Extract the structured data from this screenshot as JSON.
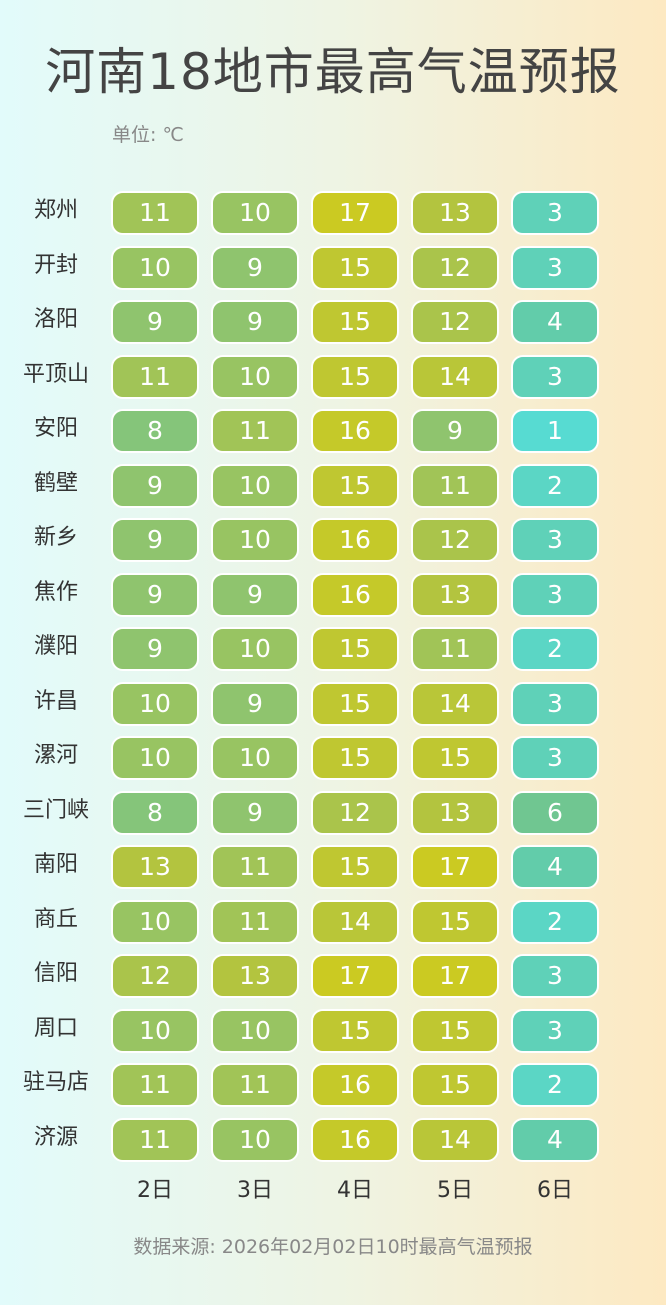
{
  "chart_data": {
    "type": "heatmap",
    "title": "河南18地市最高气温预报",
    "unit_label": "单位: ℃",
    "source": "数据来源: 2026年02月02日10时最高气温预报",
    "columns": [
      "2日",
      "3日",
      "4日",
      "5日",
      "6日"
    ],
    "rows": [
      "郑州",
      "开封",
      "洛阳",
      "平顶山",
      "安阳",
      "鹤壁",
      "新乡",
      "焦作",
      "濮阳",
      "许昌",
      "漯河",
      "三门峡",
      "南阳",
      "商丘",
      "信阳",
      "周口",
      "驻马店",
      "济源"
    ],
    "values": [
      [
        11,
        10,
        17,
        13,
        3
      ],
      [
        10,
        9,
        15,
        12,
        3
      ],
      [
        9,
        9,
        15,
        12,
        4
      ],
      [
        11,
        10,
        15,
        14,
        3
      ],
      [
        8,
        11,
        16,
        9,
        1
      ],
      [
        9,
        10,
        15,
        11,
        2
      ],
      [
        9,
        10,
        16,
        12,
        3
      ],
      [
        9,
        9,
        16,
        13,
        3
      ],
      [
        9,
        10,
        15,
        11,
        2
      ],
      [
        10,
        9,
        15,
        14,
        3
      ],
      [
        10,
        10,
        15,
        15,
        3
      ],
      [
        8,
        9,
        12,
        13,
        6
      ],
      [
        13,
        11,
        15,
        17,
        4
      ],
      [
        10,
        11,
        14,
        15,
        2
      ],
      [
        12,
        13,
        17,
        17,
        3
      ],
      [
        10,
        10,
        15,
        15,
        3
      ],
      [
        11,
        11,
        16,
        15,
        2
      ],
      [
        11,
        10,
        16,
        14,
        4
      ]
    ],
    "color_scale": [
      "#57dbd2",
      "#66c79d",
      "#8fc46e",
      "#b3c43f",
      "#cbca22"
    ]
  }
}
